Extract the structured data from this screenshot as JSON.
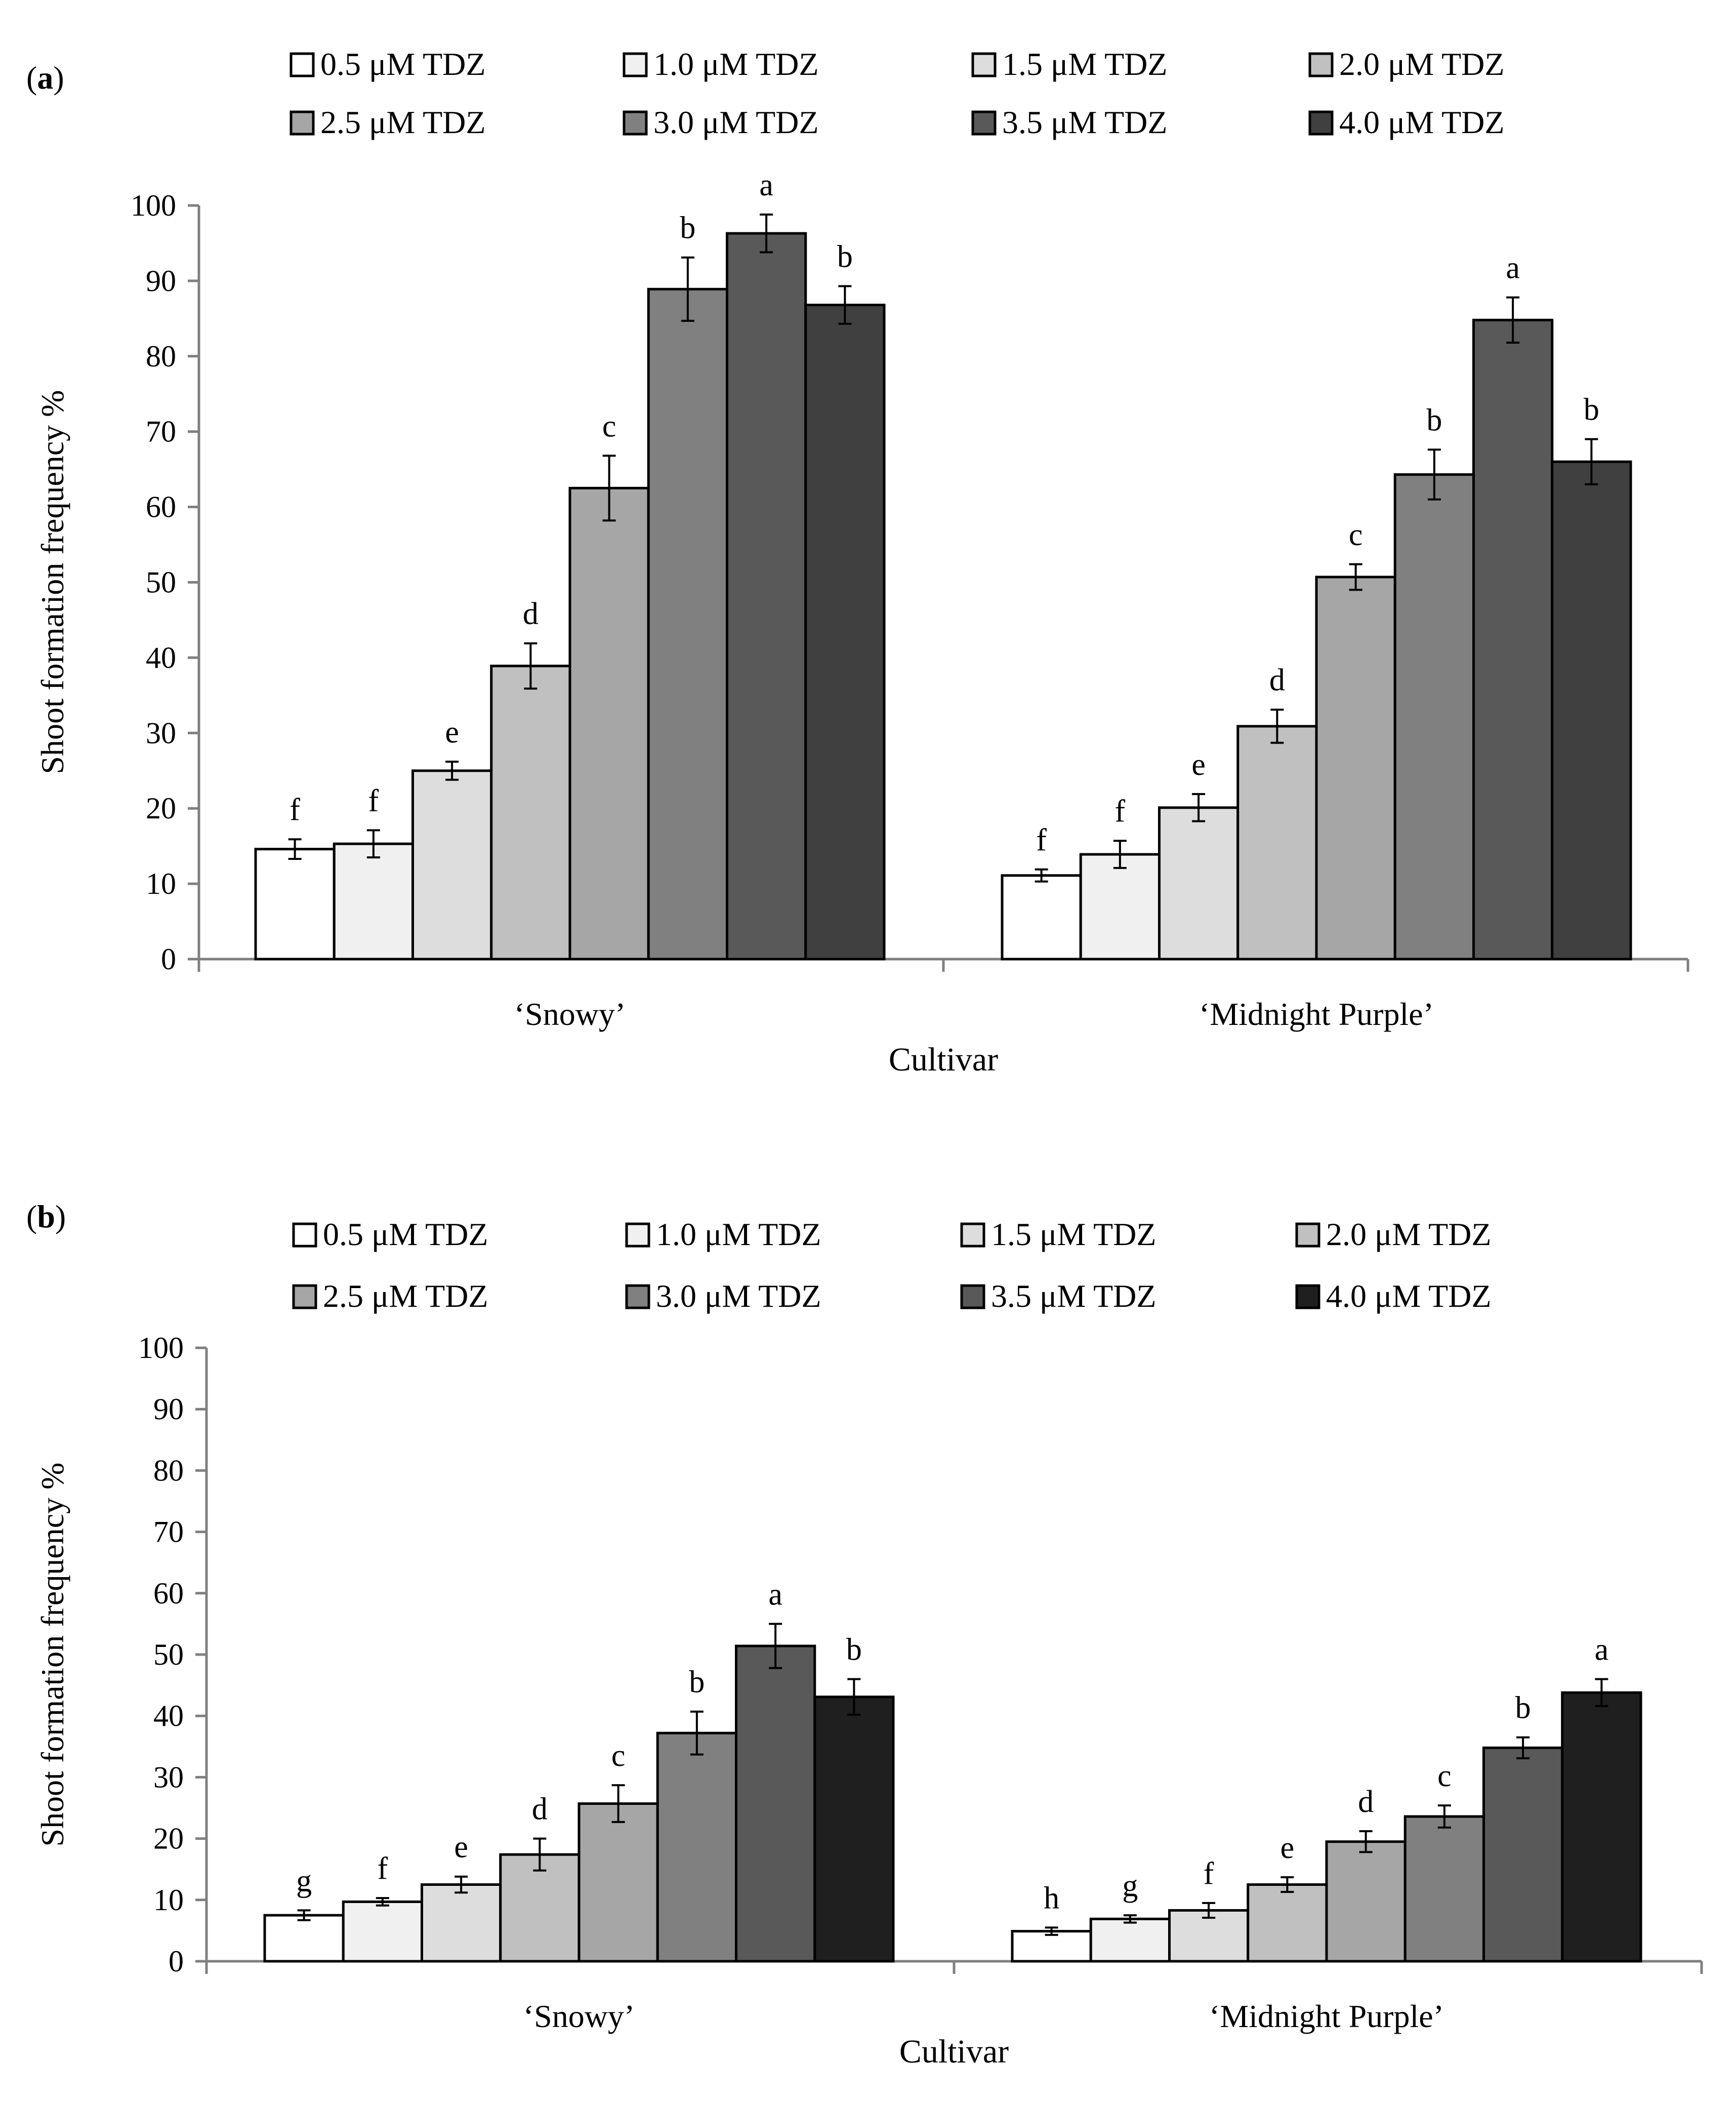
{
  "chart_data": [
    {
      "panel_label": "a",
      "type": "bar",
      "categories": [
        "‘Snowy’",
        "‘Midnight Purple’"
      ],
      "xlabel": "Cultivar",
      "ylabel": "Shoot formation frequency %",
      "ylim": [
        0,
        100
      ],
      "yticks": [
        "0",
        "10",
        "20",
        "30",
        "40",
        "50",
        "60",
        "70",
        "80",
        "90",
        "100"
      ],
      "grid": false,
      "legend_position": "top",
      "error_bars": true,
      "series": [
        {
          "name": "0.5 μM TDZ",
          "color": "#ffffff",
          "values": [
            14.6,
            11.1
          ],
          "errors": [
            1.3,
            0.8
          ],
          "letters": [
            "f",
            "f"
          ]
        },
        {
          "name": "1.0 μM TDZ",
          "color": "#f0f0f0",
          "values": [
            15.3,
            13.9
          ],
          "errors": [
            1.8,
            1.8
          ],
          "letters": [
            "f",
            "f"
          ]
        },
        {
          "name": "1.5 μM TDZ",
          "color": "#dddddd",
          "values": [
            25.0,
            20.1
          ],
          "errors": [
            1.2,
            1.8
          ],
          "letters": [
            "e",
            "e"
          ]
        },
        {
          "name": "2.0 μM TDZ",
          "color": "#c0c0c0",
          "values": [
            38.9,
            30.9
          ],
          "errors": [
            3.0,
            2.2
          ],
          "letters": [
            "d",
            "d"
          ]
        },
        {
          "name": "2.5 μM TDZ",
          "color": "#a6a6a6",
          "values": [
            62.5,
            50.7
          ],
          "errors": [
            4.3,
            1.7
          ],
          "letters": [
            "c",
            "c"
          ]
        },
        {
          "name": "3.0 μM TDZ",
          "color": "#808080",
          "values": [
            88.9,
            64.3
          ],
          "errors": [
            4.2,
            3.3
          ],
          "letters": [
            "b",
            "b"
          ]
        },
        {
          "name": "3.5 μM TDZ",
          "color": "#595959",
          "values": [
            96.3,
            84.8
          ],
          "errors": [
            2.5,
            3.0
          ],
          "letters": [
            "a",
            "a"
          ]
        },
        {
          "name": "4.0 μM TDZ",
          "color": "#404040",
          "values": [
            86.8,
            66.0
          ],
          "errors": [
            2.5,
            3.0
          ],
          "letters": [
            "b",
            "b"
          ]
        }
      ]
    },
    {
      "panel_label": "b",
      "type": "bar",
      "categories": [
        "‘Snowy’",
        "‘Midnight Purple’"
      ],
      "xlabel": "Cultivar",
      "ylabel": "Shoot formation frequency %",
      "ylim": [
        0,
        100
      ],
      "yticks": [
        "0",
        "10",
        "20",
        "30",
        "40",
        "50",
        "60",
        "70",
        "80",
        "90",
        "100"
      ],
      "grid": false,
      "legend_position": "top",
      "error_bars": true,
      "series": [
        {
          "name": "0.5 μM TDZ",
          "color": "#ffffff",
          "values": [
            7.5,
            4.9
          ],
          "errors": [
            0.8,
            0.6
          ],
          "letters": [
            "g",
            "h"
          ]
        },
        {
          "name": "1.0 μM TDZ",
          "color": "#f0f0f0",
          "values": [
            9.7,
            6.9
          ],
          "errors": [
            0.6,
            0.6
          ],
          "letters": [
            "f",
            "g"
          ]
        },
        {
          "name": "1.5 μM TDZ",
          "color": "#dddddd",
          "values": [
            12.5,
            8.3
          ],
          "errors": [
            1.3,
            1.2
          ],
          "letters": [
            "e",
            "f"
          ]
        },
        {
          "name": "2.0 μM TDZ",
          "color": "#c0c0c0",
          "values": [
            17.4,
            12.5
          ],
          "errors": [
            2.6,
            1.2
          ],
          "letters": [
            "d",
            "e"
          ]
        },
        {
          "name": "2.5 μM TDZ",
          "color": "#a6a6a6",
          "values": [
            25.7,
            19.5
          ],
          "errors": [
            3.0,
            1.7
          ],
          "letters": [
            "c",
            "d"
          ]
        },
        {
          "name": "3.0 μM TDZ",
          "color": "#808080",
          "values": [
            37.2,
            23.6
          ],
          "errors": [
            3.5,
            1.8
          ],
          "letters": [
            "b",
            "c"
          ]
        },
        {
          "name": "3.5 μM TDZ",
          "color": "#595959",
          "values": [
            51.4,
            34.8
          ],
          "errors": [
            3.6,
            1.7
          ],
          "letters": [
            "a",
            "b"
          ]
        },
        {
          "name": "4.0 μM TDZ",
          "color": "#1f1f1f",
          "values": [
            43.1,
            43.8
          ],
          "errors": [
            2.9,
            2.2
          ],
          "letters": [
            "b",
            "a"
          ]
        }
      ]
    }
  ]
}
